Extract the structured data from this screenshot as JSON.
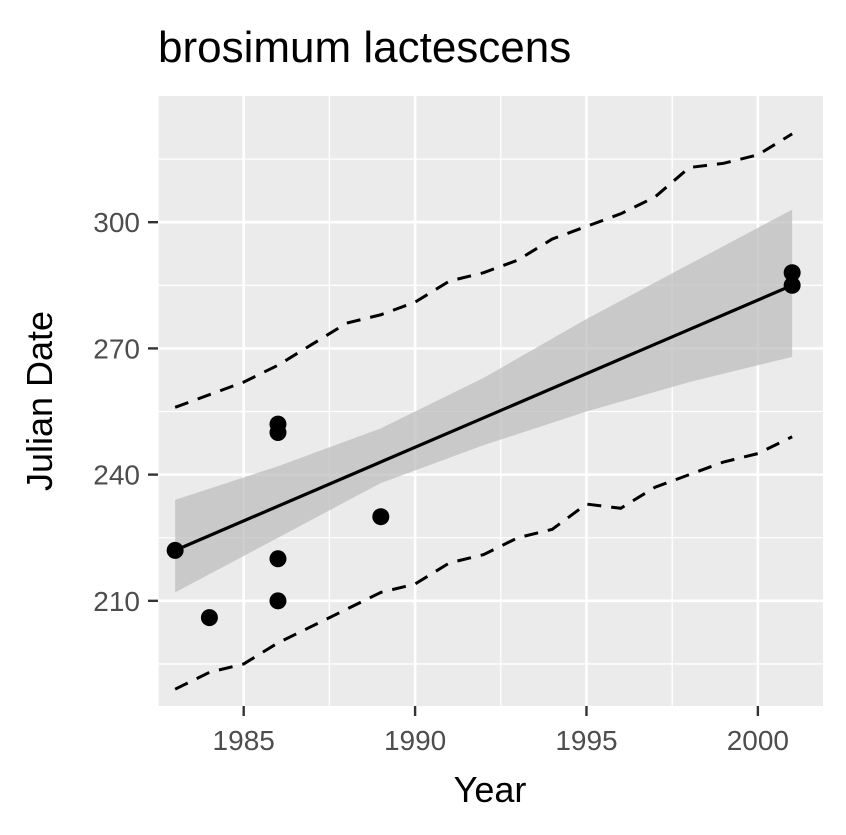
{
  "chart_data": {
    "type": "scatter",
    "title": "brosimum lactescens",
    "xlabel": "Year",
    "ylabel": "Julian Date",
    "xlim": [
      1982.5,
      2001.9
    ],
    "ylim": [
      185,
      330
    ],
    "xticks": [
      1985,
      1990,
      1995,
      2000
    ],
    "yticks": [
      210,
      240,
      270,
      300
    ],
    "grid": true,
    "legend": "none",
    "colors": {
      "panel": "#ebebeb",
      "grid": "#ffffff",
      "points": "#000000",
      "ribbon": "#bdbdbd"
    },
    "points": [
      {
        "x": 1983,
        "y": 222
      },
      {
        "x": 1984,
        "y": 206
      },
      {
        "x": 1986,
        "y": 252
      },
      {
        "x": 1986,
        "y": 250
      },
      {
        "x": 1986,
        "y": 220
      },
      {
        "x": 1986,
        "y": 210
      },
      {
        "x": 1989,
        "y": 230
      },
      {
        "x": 2001,
        "y": 288
      },
      {
        "x": 2001,
        "y": 285
      }
    ],
    "fit_line": {
      "x": [
        1983,
        2001
      ],
      "y": [
        222,
        285
      ]
    },
    "confidence_band": {
      "x": [
        1983,
        1986,
        1989,
        1992,
        1995,
        1998,
        2001
      ],
      "lower": [
        212,
        225,
        238,
        247,
        255,
        262,
        268
      ],
      "upper": [
        234,
        242,
        251,
        263,
        277,
        290,
        303
      ]
    },
    "prediction_upper": {
      "x": [
        1983,
        1984,
        1985,
        1986,
        1987,
        1988,
        1989,
        1990,
        1991,
        1992,
        1993,
        1994,
        1995,
        1996,
        1997,
        1998,
        1999,
        2000,
        2001
      ],
      "y": [
        256,
        259,
        262,
        266,
        271,
        276,
        278,
        281,
        286,
        288,
        291,
        296,
        299,
        302,
        306,
        313,
        314,
        316,
        321
      ]
    },
    "prediction_lower": {
      "x": [
        1983,
        1984,
        1985,
        1986,
        1987,
        1988,
        1989,
        1990,
        1991,
        1992,
        1993,
        1994,
        1995,
        1996,
        1997,
        1998,
        1999,
        2000,
        2001
      ],
      "y": [
        189,
        193,
        195,
        200,
        204,
        208,
        212,
        214,
        219,
        221,
        225,
        227,
        233,
        232,
        237,
        240,
        243,
        245,
        249
      ]
    }
  }
}
